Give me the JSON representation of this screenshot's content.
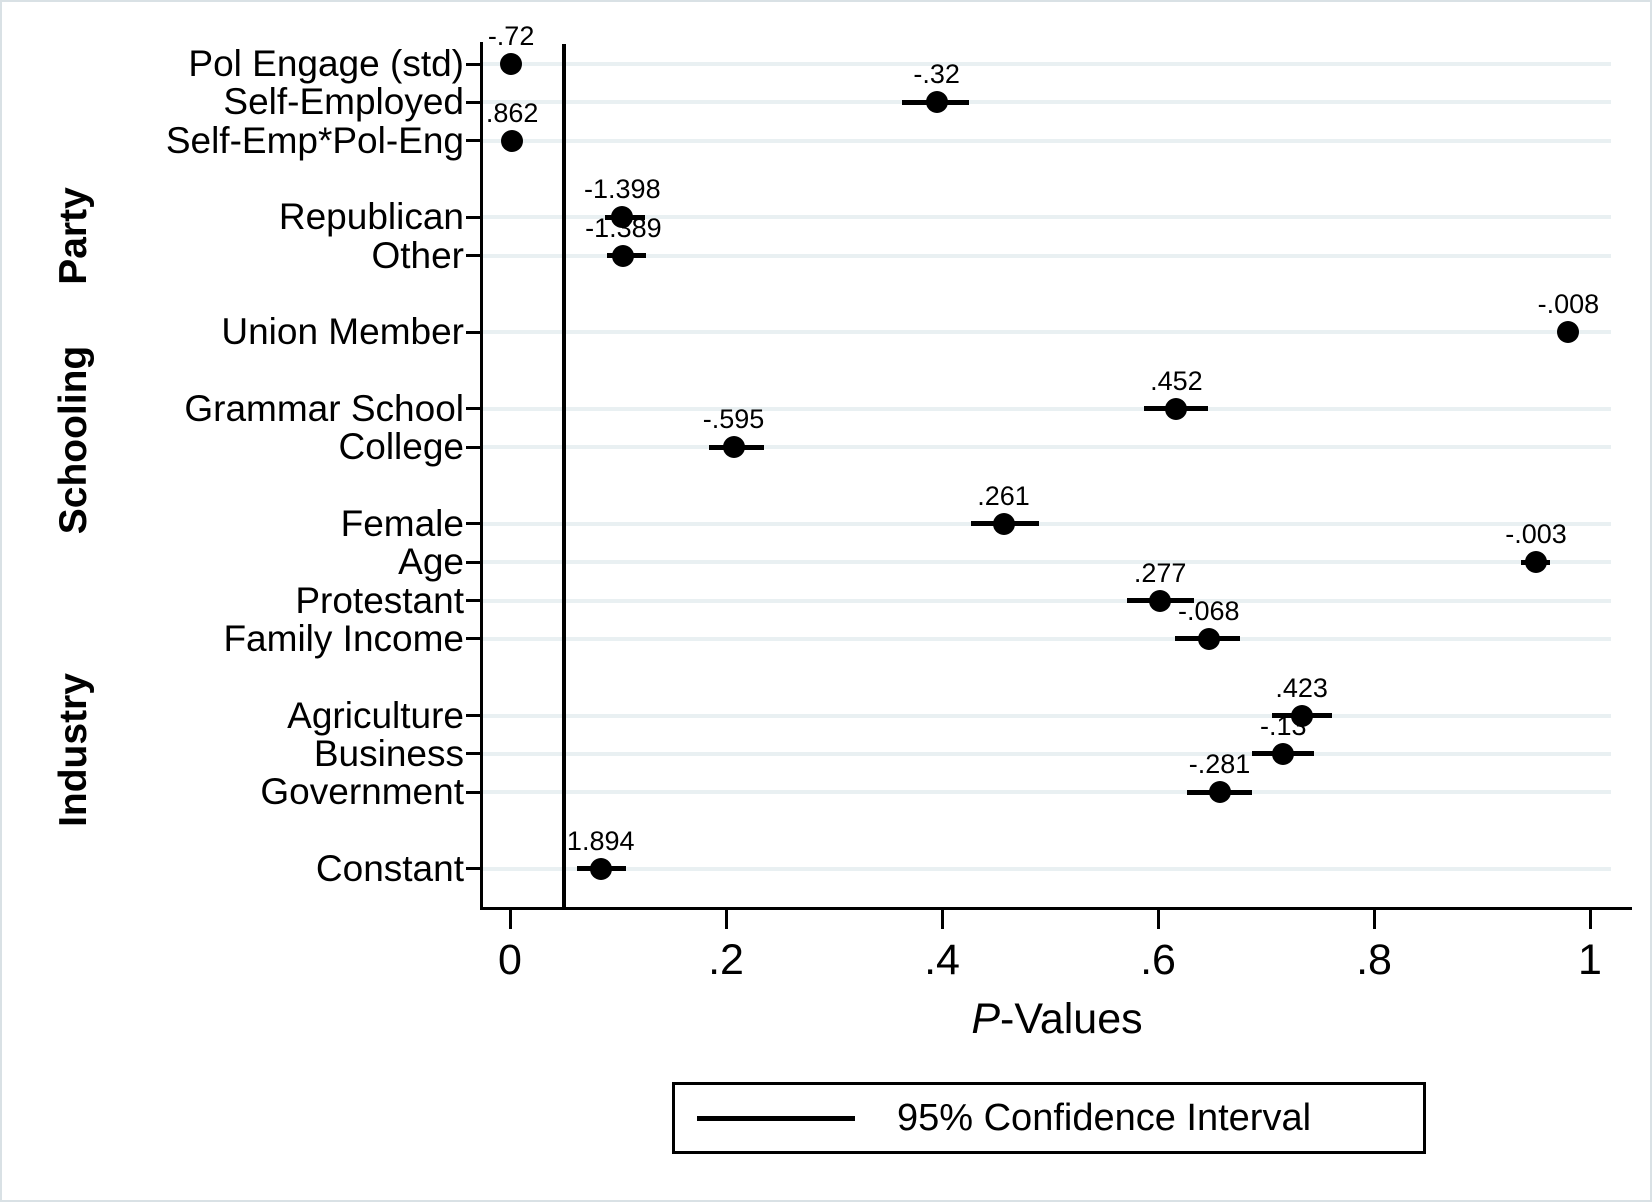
{
  "figure": {
    "background": "#ffffff",
    "border_color": "#d9e1e5"
  },
  "chart_data": {
    "type": "scatter",
    "title": "",
    "xlabel": "P-Values",
    "ylabel": "",
    "grid": true,
    "gridline_color": "#e9f0f2",
    "marker_color": "#000000",
    "reference_line_x": 0.05,
    "x_axis": {
      "range": [
        -0.026,
        1.04
      ],
      "ticks": [
        {
          "value": 0,
          "label": "0"
        },
        {
          "value": 0.2,
          "label": ".2"
        },
        {
          "value": 0.4,
          "label": ".4"
        },
        {
          "value": 0.6,
          "label": ".6"
        },
        {
          "value": 0.8,
          "label": ".8"
        },
        {
          "value": 1,
          "label": "1"
        }
      ]
    },
    "groups": [
      {
        "name": "Party",
        "row_center": 4.5
      },
      {
        "name": "Schooling",
        "row_center": 9.8
      },
      {
        "name": "Industry",
        "row_center": 17.9
      }
    ],
    "points": [
      {
        "category": "Pol Engage (std)",
        "row": 0,
        "p": 0.001,
        "ci_lo": null,
        "ci_hi": null,
        "label": "-.72"
      },
      {
        "category": "Self-Employed",
        "row": 1,
        "p": 0.395,
        "ci_lo": 0.363,
        "ci_hi": 0.425,
        "label": "-.32"
      },
      {
        "category": "Self-Emp*Pol-Eng",
        "row": 2,
        "p": 0.002,
        "ci_lo": null,
        "ci_hi": null,
        "label": ".862"
      },
      {
        "category": "Republican",
        "row": 4,
        "p": 0.104,
        "ci_lo": 0.088,
        "ci_hi": 0.125,
        "label": "-1.398"
      },
      {
        "category": "Other",
        "row": 5,
        "p": 0.105,
        "ci_lo": 0.09,
        "ci_hi": 0.126,
        "label": "-1.389"
      },
      {
        "category": "Union Member",
        "row": 7,
        "p": 0.98,
        "ci_lo": null,
        "ci_hi": null,
        "label": "-.008"
      },
      {
        "category": "Grammar School",
        "row": 9,
        "p": 0.617,
        "ci_lo": 0.587,
        "ci_hi": 0.646,
        "label": ".452"
      },
      {
        "category": "College",
        "row": 10,
        "p": 0.207,
        "ci_lo": 0.184,
        "ci_hi": 0.235,
        "label": "-.595"
      },
      {
        "category": "Female",
        "row": 12,
        "p": 0.457,
        "ci_lo": 0.427,
        "ci_hi": 0.49,
        "label": ".261"
      },
      {
        "category": "Age",
        "row": 13,
        "p": 0.95,
        "ci_lo": 0.936,
        "ci_hi": 0.963,
        "label": "-.003"
      },
      {
        "category": "Protestant",
        "row": 14,
        "p": 0.602,
        "ci_lo": 0.571,
        "ci_hi": 0.633,
        "label": ".277"
      },
      {
        "category": "Family Income",
        "row": 15,
        "p": 0.647,
        "ci_lo": 0.616,
        "ci_hi": 0.676,
        "label": "-.068"
      },
      {
        "category": "Agriculture",
        "row": 17,
        "p": 0.733,
        "ci_lo": 0.706,
        "ci_hi": 0.761,
        "label": ".423"
      },
      {
        "category": "Business",
        "row": 18,
        "p": 0.716,
        "ci_lo": 0.687,
        "ci_hi": 0.744,
        "label": "-.13"
      },
      {
        "category": "Government",
        "row": 19,
        "p": 0.657,
        "ci_lo": 0.627,
        "ci_hi": 0.687,
        "label": "-.281"
      },
      {
        "category": "Constant",
        "row": 21,
        "p": 0.084,
        "ci_lo": 0.062,
        "ci_hi": 0.107,
        "label": "1.894"
      }
    ],
    "legend": {
      "label": "95% Confidence Interval",
      "position": "bottom"
    }
  }
}
